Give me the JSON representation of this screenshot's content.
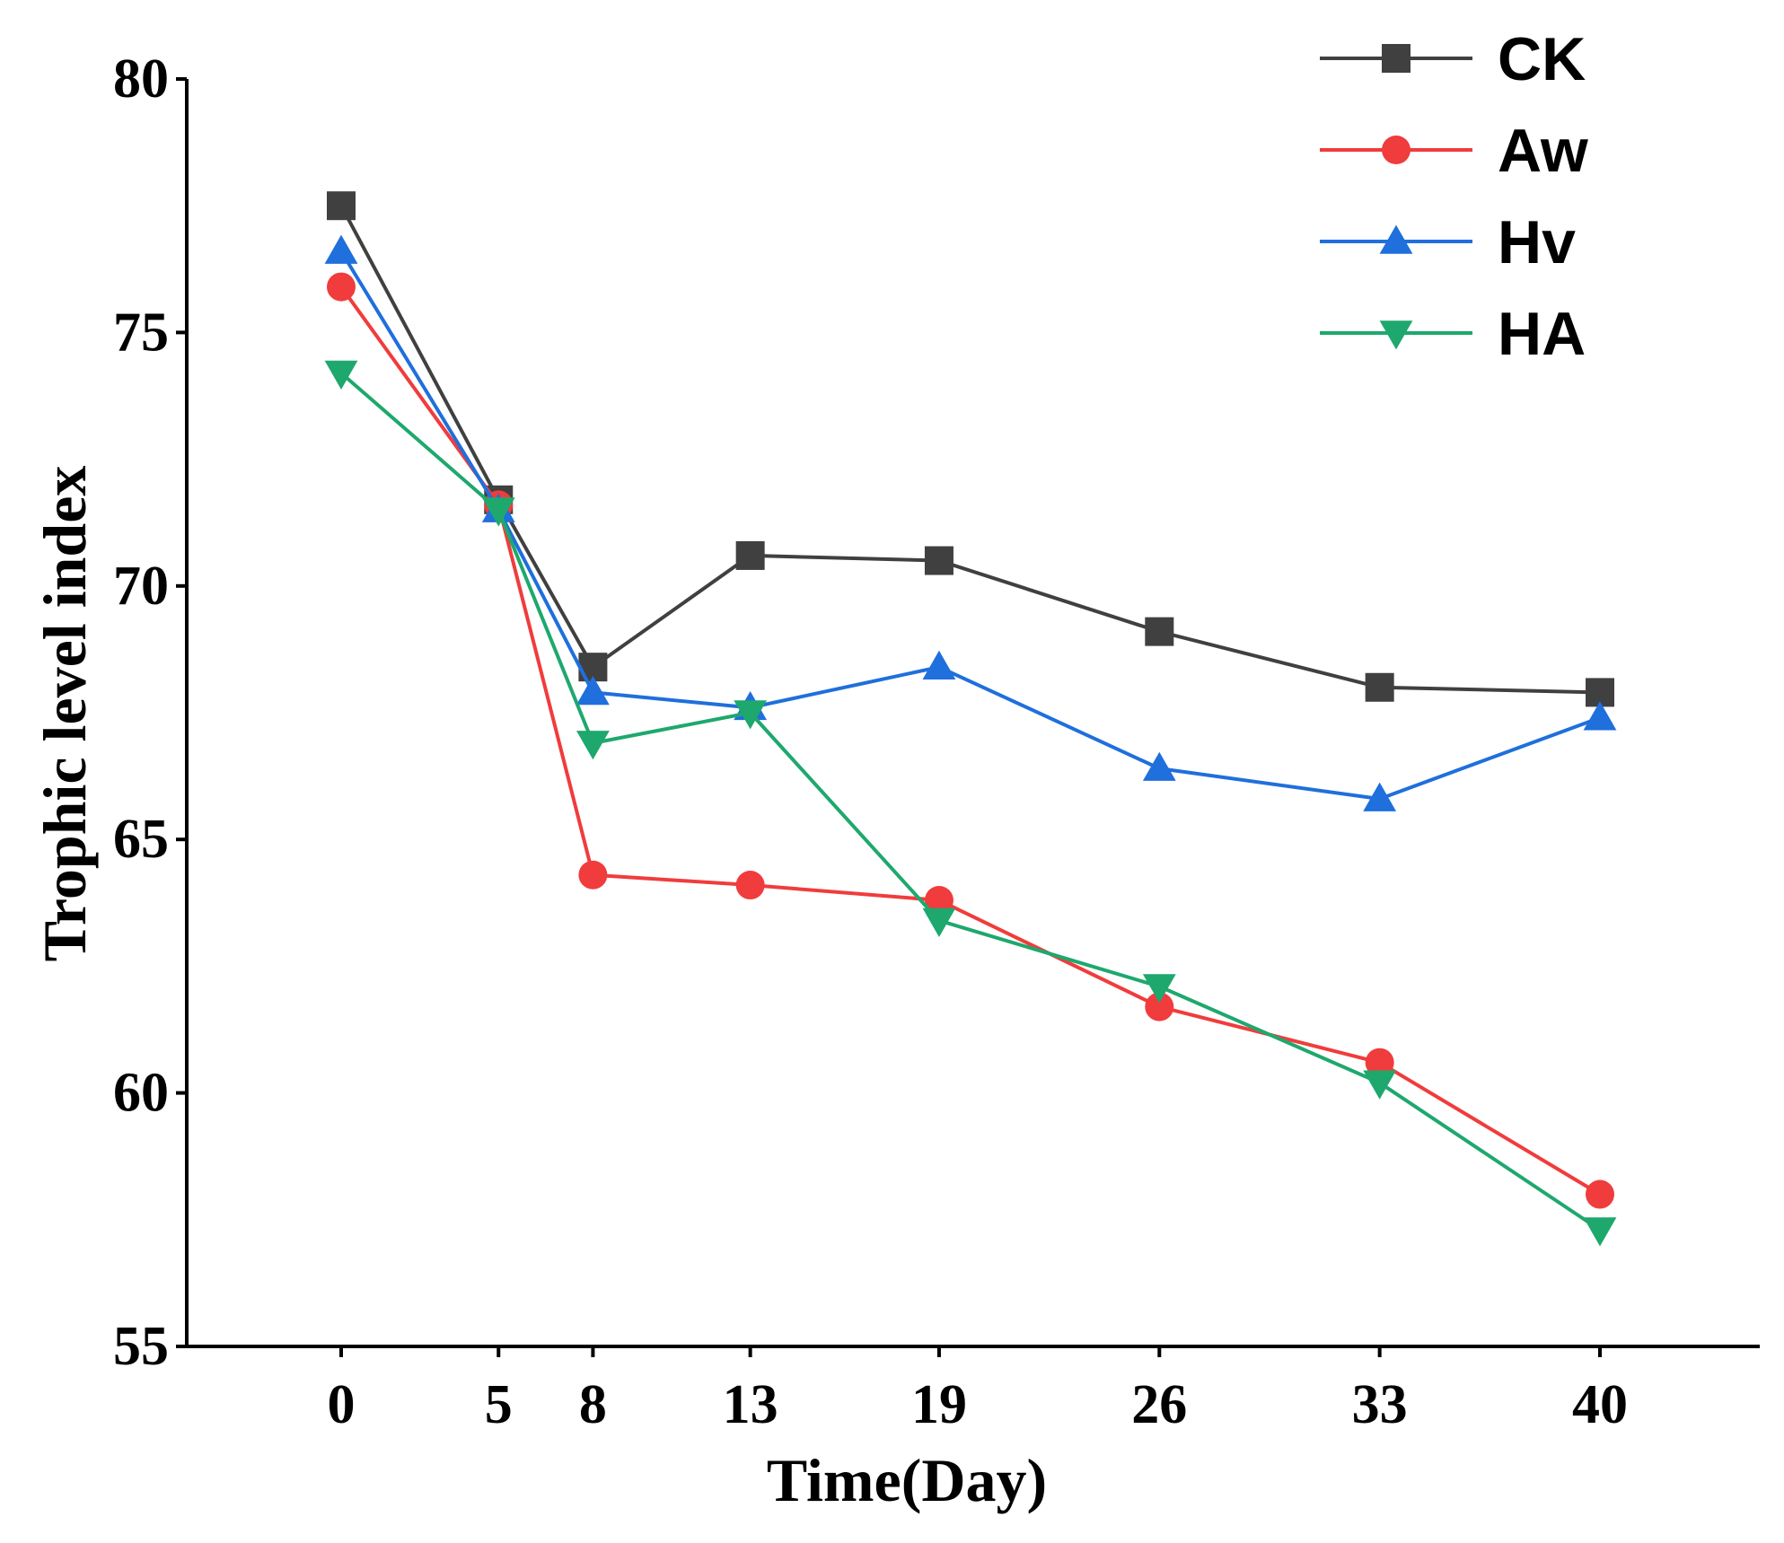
{
  "chart_data": {
    "type": "line",
    "title": "",
    "xlabel": "Time(Day)",
    "ylabel": "Trophic level index",
    "x": [
      0,
      5,
      8,
      13,
      19,
      26,
      33,
      40
    ],
    "x_tick_labels": [
      "0",
      "5",
      "8",
      "13",
      "19",
      "26",
      "33",
      "40"
    ],
    "ylim": [
      55,
      80
    ],
    "y_ticks": [
      55,
      60,
      65,
      70,
      75,
      80
    ],
    "legend_position": "top-right",
    "grid": false,
    "series": [
      {
        "name": "CK",
        "color": "#404040",
        "marker": "square",
        "values": [
          77.5,
          71.7,
          68.4,
          70.6,
          70.5,
          69.1,
          68.0,
          67.9
        ]
      },
      {
        "name": "Aw",
        "color": "#f03c3c",
        "marker": "circle",
        "values": [
          75.9,
          71.6,
          64.3,
          64.1,
          63.8,
          61.7,
          60.6,
          58.0
        ]
      },
      {
        "name": "Hv",
        "color": "#1f6fdc",
        "marker": "triangle-up",
        "values": [
          76.6,
          71.5,
          67.9,
          67.6,
          68.4,
          66.4,
          65.8,
          67.4
        ]
      },
      {
        "name": "HA",
        "color": "#1ea86e",
        "marker": "triangle-down",
        "values": [
          74.2,
          71.5,
          66.9,
          67.5,
          63.4,
          62.1,
          60.2,
          57.3
        ]
      }
    ]
  }
}
